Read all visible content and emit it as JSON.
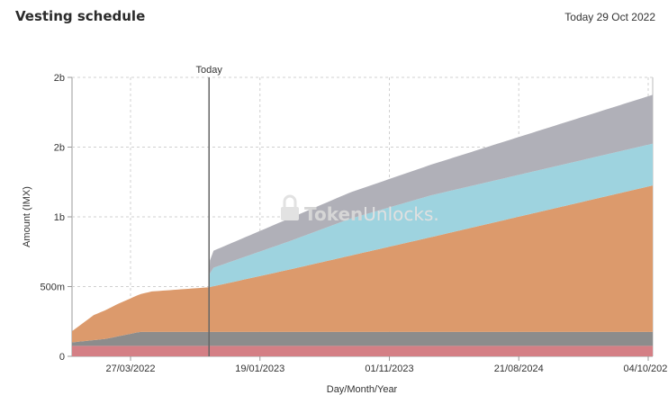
{
  "header": {
    "title": "Vesting schedule",
    "today_label": "Today 29 Oct 2022"
  },
  "watermark": {
    "part1": "Token",
    "part2": "Unlocks",
    "suffix": "."
  },
  "chart_data": {
    "type": "area",
    "stacked": true,
    "xlabel": "Day/Month/Year",
    "ylabel": "Amount (IMX)",
    "x_ticks": [
      "27/03/2022",
      "19/01/2023",
      "01/11/2023",
      "21/08/2024",
      "04/10/2025"
    ],
    "y_ticks": [
      "0",
      "500m",
      "1b",
      "2b",
      "2b"
    ],
    "y_tick_values": [
      0,
      500000000,
      1000000000,
      1500000000,
      2000000000
    ],
    "ylim": [
      0,
      2000000000
    ],
    "today_marker": {
      "label": "Today",
      "date": "2022-10-29"
    },
    "grid": true,
    "colors": [
      "#d47f85",
      "#8c8c8c",
      "#dc9a6c",
      "#9ed3df",
      "#b0b0b8"
    ],
    "series": [
      {
        "x": [
          "2021-11-05",
          "2022-11-05",
          "2025-12-31"
        ],
        "values": [
          75000000,
          75000000,
          75000000
        ]
      },
      {
        "x": [
          "2021-11-05",
          "2022-02-01",
          "2022-05-01",
          "2022-11-05",
          "2025-12-31"
        ],
        "values": [
          25000000,
          50000000,
          100000000,
          100000000,
          100000000
        ]
      },
      {
        "x": [
          "2021-11-05",
          "2022-01-01",
          "2022-03-01",
          "2022-06-01",
          "2022-10-29",
          "2023-06-01",
          "2024-06-01",
          "2025-12-31"
        ],
        "values": [
          80000000,
          180000000,
          230000000,
          290000000,
          320000000,
          450000000,
          680000000,
          1050000000
        ]
      },
      {
        "x": [
          "2021-11-05",
          "2022-10-29",
          "2022-11-01",
          "2023-06-01",
          "2023-11-01",
          "2024-06-01",
          "2025-12-31"
        ],
        "values": [
          0,
          0,
          130000000,
          205000000,
          265000000,
          300000000,
          300000000
        ]
      },
      {
        "x": [
          "2021-11-05",
          "2022-10-29",
          "2022-11-01",
          "2023-06-01",
          "2024-06-01",
          "2025-12-31"
        ],
        "values": [
          0,
          0,
          120000000,
          165000000,
          220000000,
          350000000
        ]
      }
    ]
  }
}
